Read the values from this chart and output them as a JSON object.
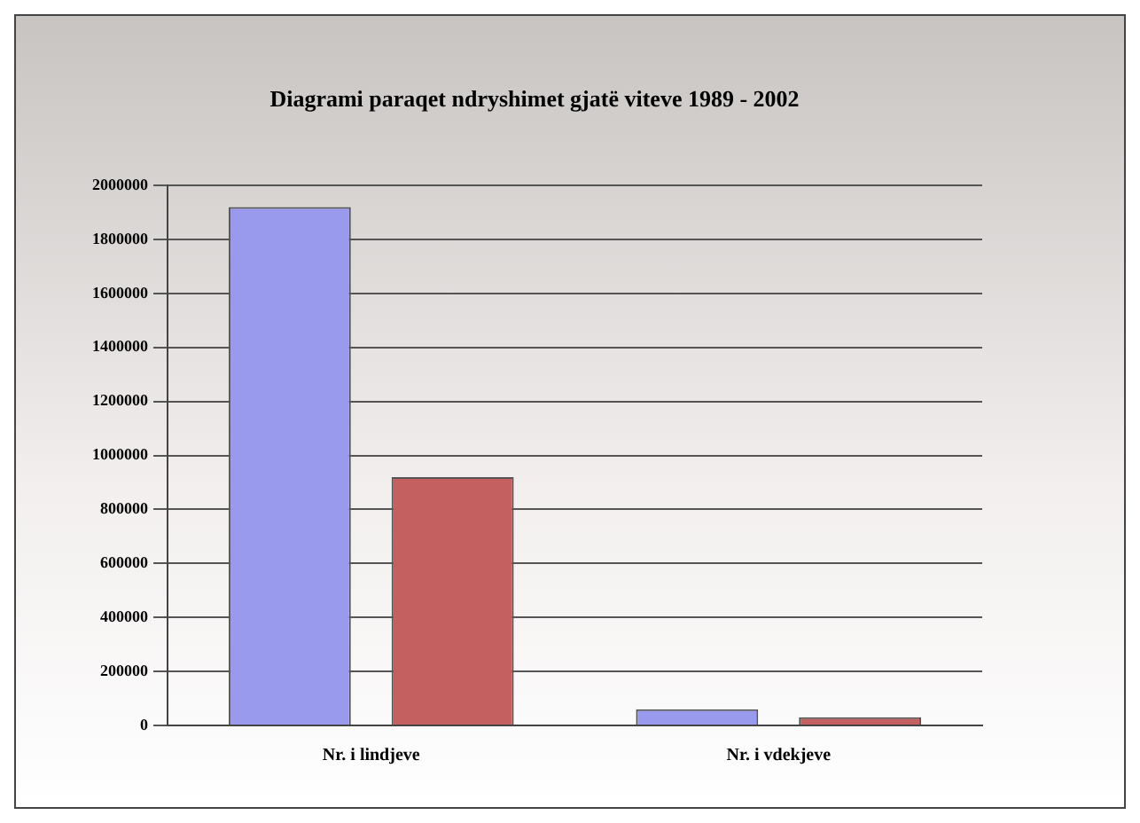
{
  "chart_data": {
    "type": "bar",
    "title": "Diagrami paraqet ndryshimet gjatë viteve 1989 - 2002",
    "categories": [
      "Nr. i lindjeve",
      "Nr. i vdekjeve"
    ],
    "series": [
      {
        "color": "#9999ee",
        "values": [
          1920000,
          60000
        ]
      },
      {
        "color": "#c46060",
        "values": [
          920000,
          30000
        ]
      }
    ],
    "ylim": [
      0,
      2000000
    ],
    "yticks": [
      0,
      200000,
      400000,
      600000,
      800000,
      1000000,
      1200000,
      1400000,
      1600000,
      1800000,
      2000000
    ],
    "grid": "y",
    "legend": false
  }
}
